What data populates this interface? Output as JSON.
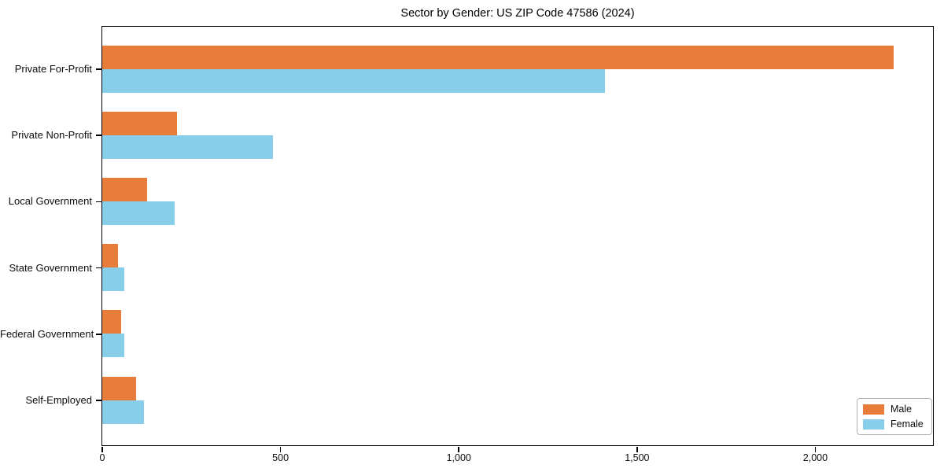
{
  "title": "Sector by Gender: US ZIP Code 47586 (2024)",
  "colors": {
    "male": "#E87D3B",
    "female": "#87CEEB",
    "axis": "#000000",
    "legend_border": "#b3b3b3",
    "background": "#ffffff"
  },
  "chart_data": {
    "type": "bar",
    "orientation": "horizontal",
    "title": "Sector by Gender: US ZIP Code 47586 (2024)",
    "xlabel": "",
    "ylabel": "",
    "categories": [
      "Private For-Profit",
      "Private Non-Profit",
      "Local Government",
      "State Government",
      "Federal Government",
      "Self-Employed"
    ],
    "series": [
      {
        "name": "Male",
        "color": "#E87D3B",
        "values": [
          2220,
          210,
          126,
          45,
          54,
          97
        ]
      },
      {
        "name": "Female",
        "color": "#87CEEB",
        "values": [
          1410,
          480,
          204,
          62,
          63,
          118
        ]
      }
    ],
    "xlim": [
      0,
      2330
    ],
    "xticks": [
      0,
      500,
      1000,
      1500,
      2000
    ],
    "xtick_labels": [
      "0",
      "500",
      "1,000",
      "1,500",
      "2,000"
    ],
    "grid": false,
    "legend_position": "lower right"
  }
}
